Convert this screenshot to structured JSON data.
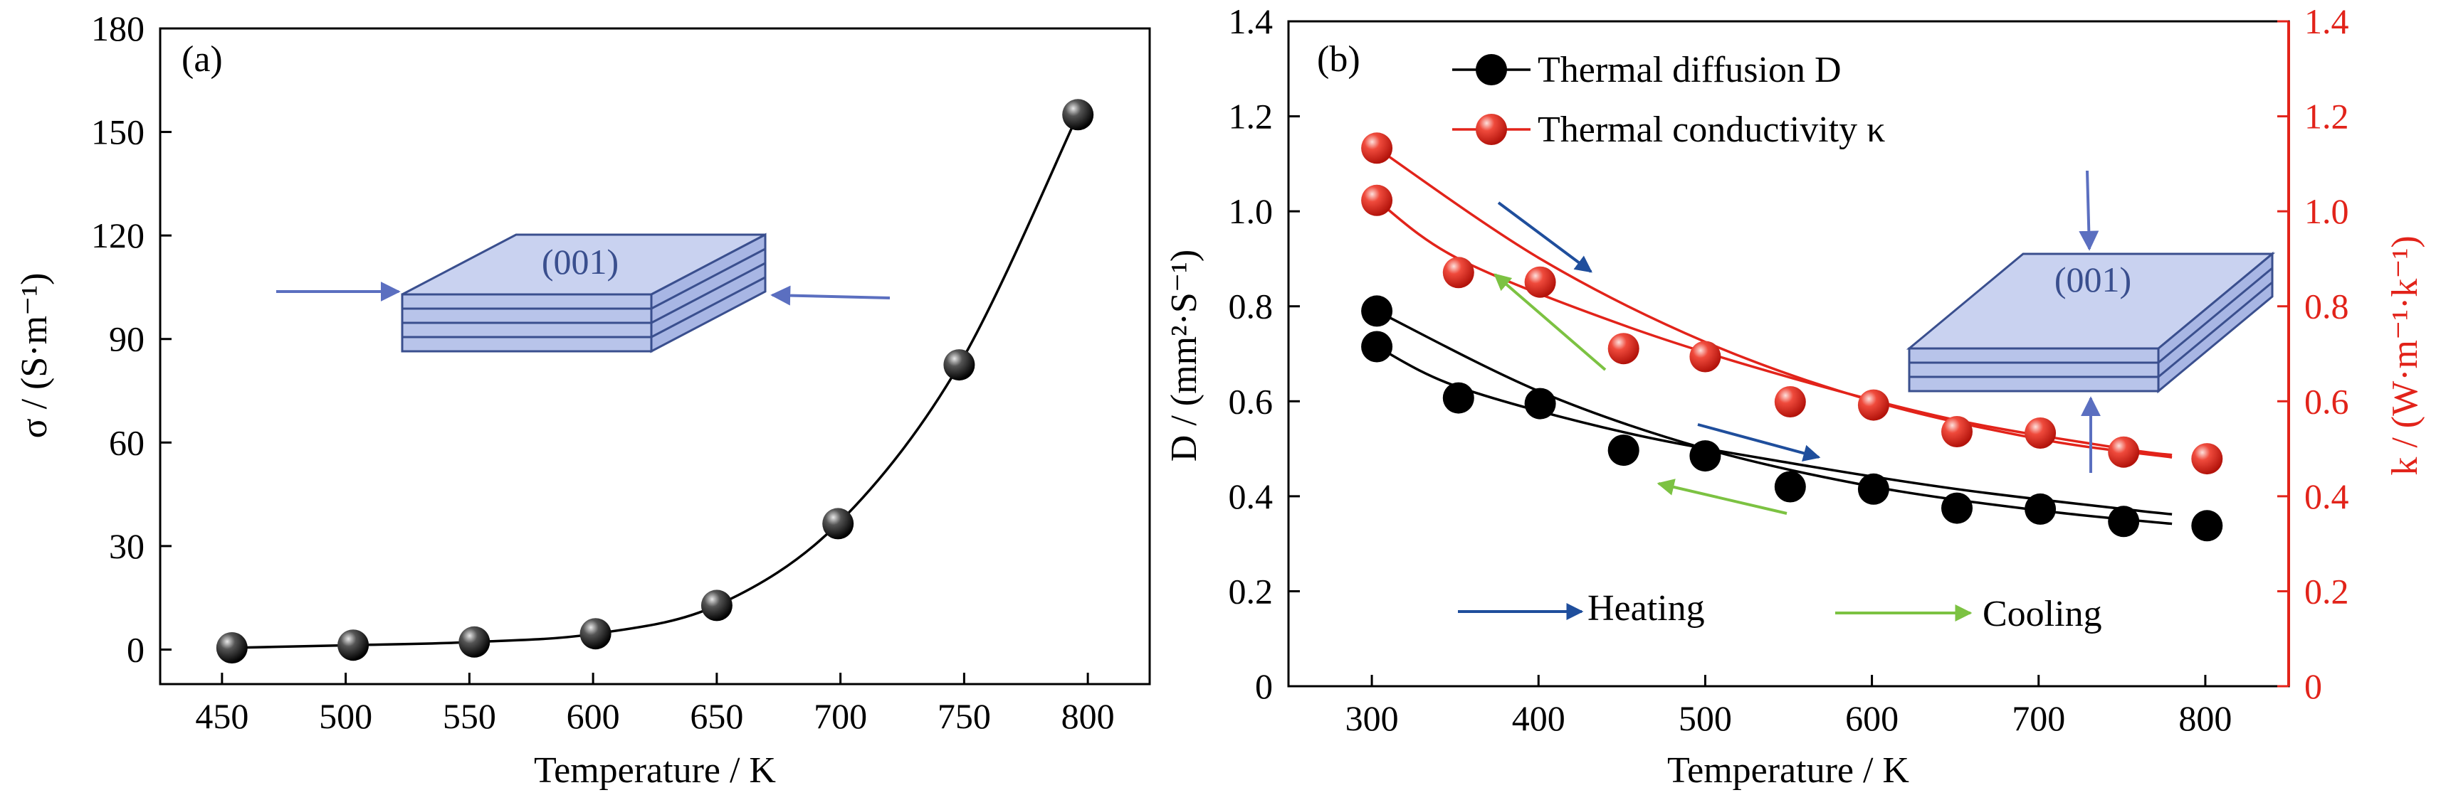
{
  "colors": {
    "black_series": "#000000",
    "red_series": "#e2231a",
    "heating_arrow": "#1f4e9c",
    "cooling_arrow": "#7cc242",
    "indicator_arrow": "#5b6fc0",
    "crystal_fill": "#c9d2f0",
    "crystal_stroke": "#3a4f8e"
  },
  "chart_data": [
    {
      "type": "scatter",
      "panel_label": "(a)",
      "title": "",
      "xlabel": "Temperature / K",
      "ylabel": "σ / (S·m⁻¹)",
      "xlim": [
        425,
        825
      ],
      "ylim": [
        -10,
        180
      ],
      "xticks": [
        450,
        500,
        550,
        600,
        650,
        700,
        750,
        800
      ],
      "yticks": [
        0,
        30,
        60,
        90,
        120,
        150,
        180
      ],
      "grid": false,
      "legend": "none",
      "series": [
        {
          "color": "#000000",
          "marker": "sphere",
          "fit_curve": true,
          "x": [
            454,
            503,
            552,
            601,
            650,
            699,
            748,
            796
          ],
          "y": [
            0.5,
            1.3,
            2.2,
            4.6,
            12.8,
            36.5,
            82.5,
            155
          ]
        }
      ],
      "inset": {
        "crystal_label": "(001)",
        "arrows": "horizontal, pointing inward from both sides"
      }
    },
    {
      "type": "scatter",
      "panel_label": "(b)",
      "title": "",
      "xlabel": "Temperature / K",
      "ylabel": "D / (mm²·S⁻¹)",
      "ylabel_right": "k / (W·m⁻¹·k⁻¹)",
      "xlim": [
        250,
        850
      ],
      "ylim": [
        0,
        1.4
      ],
      "ylim_right": [
        0,
        1.4
      ],
      "xticks": [
        300,
        400,
        500,
        600,
        700,
        800
      ],
      "yticks": [
        0,
        0.2,
        0.4,
        0.6,
        0.8,
        1.0,
        1.2,
        1.4
      ],
      "yticks_right": [
        0,
        0.2,
        0.4,
        0.6,
        0.8,
        1.0,
        1.2,
        1.4
      ],
      "grid": false,
      "legend": "top-left",
      "series": [
        {
          "name": "Thermal diffusion D",
          "color": "#000000",
          "marker": "circle",
          "x": [
            303,
            303,
            352,
            401,
            451,
            500,
            551,
            601,
            651,
            701,
            751,
            801
          ],
          "y": [
            0.79,
            0.715,
            0.607,
            0.595,
            0.497,
            0.485,
            0.42,
            0.415,
            0.375,
            0.373,
            0.347,
            0.338
          ],
          "curves": [
            {
              "direction": "heating",
              "x": [
                303,
                401,
                500,
                601,
                701,
                780
              ],
              "y": [
                0.79,
                0.62,
                0.5,
                0.42,
                0.37,
                0.342
              ]
            },
            {
              "direction": "cooling",
              "x": [
                303,
                352,
                451,
                551,
                651,
                751,
                780
              ],
              "y": [
                0.715,
                0.63,
                0.535,
                0.47,
                0.415,
                0.373,
                0.362
              ]
            }
          ]
        },
        {
          "name": "Thermal conductivity κ",
          "color": "#e2231a",
          "marker": "sphere",
          "x": [
            303,
            303,
            352,
            401,
            451,
            500,
            551,
            601,
            651,
            701,
            751,
            801
          ],
          "y": [
            1.133,
            1.023,
            0.871,
            0.851,
            0.711,
            0.694,
            0.599,
            0.592,
            0.536,
            0.533,
            0.493,
            0.479
          ],
          "curves": [
            {
              "direction": "heating",
              "x": [
                303,
                401,
                500,
                601,
                701,
                780
              ],
              "y": [
                1.133,
                0.9,
                0.725,
                0.6,
                0.52,
                0.482
              ]
            },
            {
              "direction": "cooling",
              "x": [
                303,
                352,
                451,
                551,
                651,
                751,
                780
              ],
              "y": [
                1.023,
                0.9,
                0.76,
                0.65,
                0.56,
                0.5,
                0.487
              ]
            }
          ]
        }
      ],
      "annotations": {
        "heating_label": "Heating",
        "cooling_label": "Cooling"
      },
      "inset": {
        "crystal_label": "(001)",
        "arrows": "vertical, pointing inward from top and bottom"
      }
    }
  ]
}
